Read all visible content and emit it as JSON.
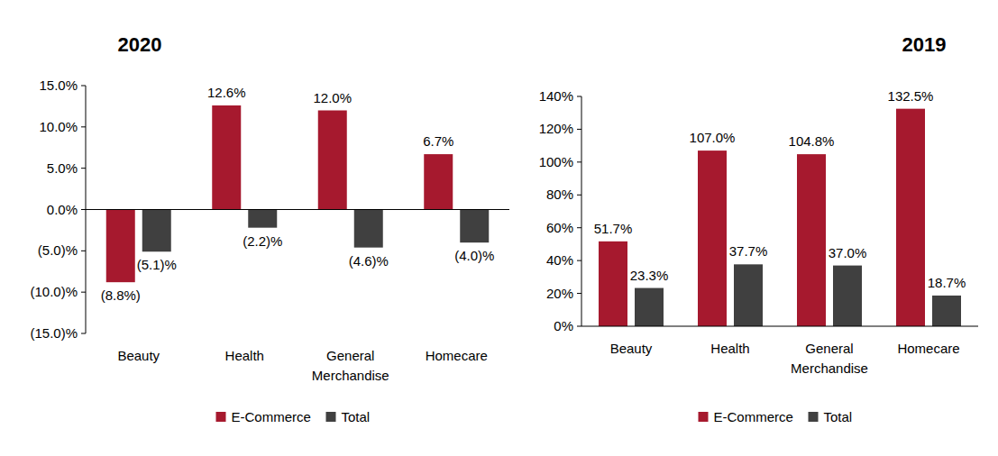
{
  "chart_data": [
    {
      "type": "bar",
      "title": "2020",
      "categories": [
        "Beauty",
        "Health",
        "General Merchandise",
        "Homecare"
      ],
      "series": [
        {
          "name": "E-Commerce",
          "color": "#a6192e",
          "values": [
            -8.8,
            12.6,
            12.0,
            6.7
          ],
          "value_labels": [
            "(8.8%)",
            "12.6%",
            "12.0%",
            "6.7%"
          ]
        },
        {
          "name": "Total",
          "color": "#404040",
          "values": [
            -5.1,
            -2.2,
            -4.6,
            -4.0
          ],
          "value_labels": [
            "(5.1)%",
            "(2.2)%",
            "(4.6)%",
            "(4.0)%"
          ]
        }
      ],
      "ylim": [
        -15,
        15
      ],
      "yticks": [
        {
          "value": 15,
          "label": "15.0%"
        },
        {
          "value": 10,
          "label": "10.0%"
        },
        {
          "value": 5,
          "label": "5.0%"
        },
        {
          "value": 0,
          "label": "0.0%"
        },
        {
          "value": -5,
          "label": "(5.0)%"
        },
        {
          "value": -10,
          "label": "(10.0)%"
        },
        {
          "value": -15,
          "label": "(15.0)%"
        }
      ],
      "grid": false,
      "legend": "bottom",
      "data_labels": true
    },
    {
      "type": "bar",
      "title": "2019",
      "categories": [
        "Beauty",
        "Health",
        "General Merchandise",
        "Homecare"
      ],
      "series": [
        {
          "name": "E-Commerce",
          "color": "#a6192e",
          "values": [
            51.7,
            107.0,
            104.8,
            132.5
          ],
          "value_labels": [
            "51.7%",
            "107.0%",
            "104.8%",
            "132.5%"
          ]
        },
        {
          "name": "Total",
          "color": "#404040",
          "values": [
            23.3,
            37.7,
            37.0,
            18.7
          ],
          "value_labels": [
            "23.3%",
            "37.7%",
            "37.0%",
            "18.7%"
          ]
        }
      ],
      "ylim": [
        0,
        140
      ],
      "yticks": [
        {
          "value": 0,
          "label": "0%"
        },
        {
          "value": 20,
          "label": "20%"
        },
        {
          "value": 40,
          "label": "40%"
        },
        {
          "value": 60,
          "label": "60%"
        },
        {
          "value": 80,
          "label": "80%"
        },
        {
          "value": 100,
          "label": "100%"
        },
        {
          "value": 120,
          "label": "120%"
        },
        {
          "value": 140,
          "label": "140%"
        }
      ],
      "grid": false,
      "legend": "bottom",
      "data_labels": true
    }
  ]
}
